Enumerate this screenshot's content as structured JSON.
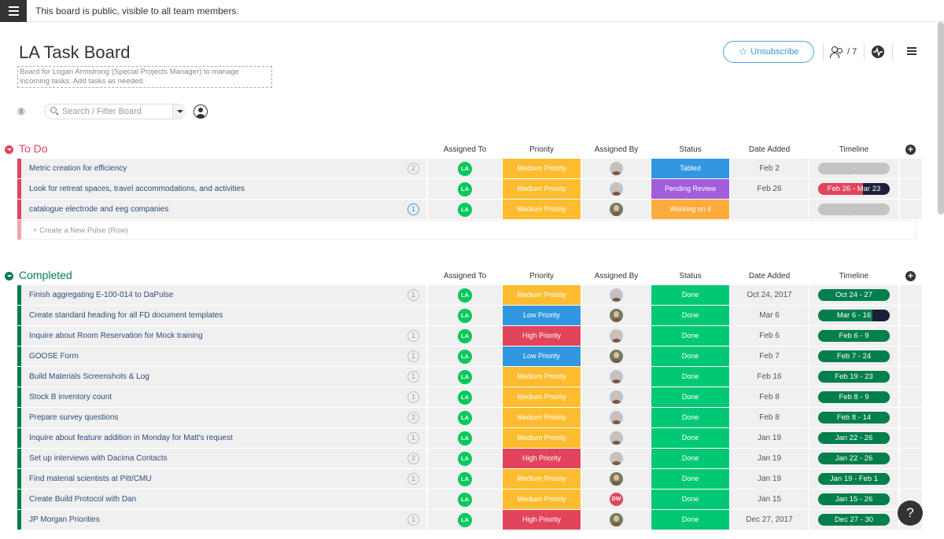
{
  "notice": "This board is public, visible to all team members.",
  "board": {
    "title": "LA Task Board",
    "description": "Board for Logan Armstrong (Special Projects Manager) to manage incoming tasks. Add tasks as needed.",
    "unsubscribe_label": "Unsubscribe",
    "members_count": "/ 7",
    "search_placeholder": "Search / Filter Board",
    "info_label": "i"
  },
  "columns": [
    "Assigned To",
    "Priority",
    "Assigned By",
    "Status",
    "Date Added",
    "Timeline"
  ],
  "groups": [
    {
      "title": "To Do",
      "color": "#e2445c",
      "create_label": "+ Create a New Pulse (Row)",
      "rows": [
        {
          "name": "Metric creation for efficiency",
          "updates": "2",
          "updates_new": false,
          "assignee": "LA",
          "priority": "Medium Priority",
          "priority_color": "#fdbc2f",
          "assigned_by": "a1",
          "status": "Tabled",
          "status_color": "#3097e0",
          "date": "Feb 2",
          "timeline": "-",
          "timeline_fill": 0,
          "timeline_color": "#c4c4c4"
        },
        {
          "name": "Look for retreat spaces, travel accommodations, and activities",
          "updates": "",
          "updates_new": false,
          "assignee": "LA",
          "priority": "Medium Priority",
          "priority_color": "#fdbc2f",
          "assigned_by": "a1",
          "status": "Pending Review",
          "status_color": "#a25ddc",
          "date": "Feb 26",
          "timeline": "Feb 26 - Mar 23",
          "timeline_fill": 0.63,
          "timeline_color": "#e2445c"
        },
        {
          "name": "catalogue electrode and eeg companies",
          "updates": "1",
          "updates_new": true,
          "assignee": "LA",
          "priority": "Medium Priority",
          "priority_color": "#fdbc2f",
          "assigned_by": "a2",
          "status": "Working on it",
          "status_color": "#fdab3d",
          "date": "",
          "timeline": "-",
          "timeline_fill": 0,
          "timeline_color": "#c4c4c4"
        }
      ]
    },
    {
      "title": "Completed",
      "color": "#037f4c",
      "rows": [
        {
          "name": "Finish aggregating E-100-014 to DaPulse",
          "updates": "1",
          "updates_new": false,
          "assignee": "LA",
          "priority": "Medium Priority",
          "priority_color": "#fdbc2f",
          "assigned_by": "a1",
          "status": "Done",
          "status_color": "#00c875",
          "date": "Oct 24, 2017",
          "timeline": "Oct 24 - 27",
          "timeline_fill": 1,
          "timeline_color": "#037f4c"
        },
        {
          "name": "Create standard heading for all FD document templates",
          "updates": "",
          "updates_new": false,
          "assignee": "LA",
          "priority": "Low Priority",
          "priority_color": "#3097e0",
          "assigned_by": "a2",
          "status": "Done",
          "status_color": "#00c875",
          "date": "Mar 6",
          "timeline": "Mar 6 - 16",
          "timeline_fill": 0.76,
          "timeline_color": "#037f4c"
        },
        {
          "name": "Inquire about Room Reservation for Mock training",
          "updates": "1",
          "updates_new": false,
          "assignee": "LA",
          "priority": "High Priority",
          "priority_color": "#e2445c",
          "assigned_by": "a1",
          "status": "Done",
          "status_color": "#00c875",
          "date": "Feb 6",
          "timeline": "Feb 6 - 9",
          "timeline_fill": 1,
          "timeline_color": "#037f4c"
        },
        {
          "name": "GOOSE Form",
          "updates": "1",
          "updates_new": false,
          "assignee": "LA",
          "priority": "Low Priority",
          "priority_color": "#3097e0",
          "assigned_by": "a2",
          "status": "Done",
          "status_color": "#00c875",
          "date": "Feb 7",
          "timeline": "Feb 7 - 24",
          "timeline_fill": 1,
          "timeline_color": "#037f4c"
        },
        {
          "name": "Build Materials Screenshots & Log",
          "updates": "1",
          "updates_new": false,
          "assignee": "LA",
          "priority": "Medium Priority",
          "priority_color": "#fdbc2f",
          "assigned_by": "a1",
          "status": "Done",
          "status_color": "#00c875",
          "date": "Feb 16",
          "timeline": "Feb 19 - 23",
          "timeline_fill": 1,
          "timeline_color": "#037f4c"
        },
        {
          "name": "Stock B inventory count",
          "updates": "1",
          "updates_new": false,
          "assignee": "LA",
          "priority": "Medium Priority",
          "priority_color": "#fdbc2f",
          "assigned_by": "a1",
          "status": "Done",
          "status_color": "#00c875",
          "date": "Feb 8",
          "timeline": "Feb 8 - 9",
          "timeline_fill": 1,
          "timeline_color": "#037f4c"
        },
        {
          "name": "Prepare survey questions",
          "updates": "2",
          "updates_new": false,
          "assignee": "LA",
          "priority": "Medium Priority",
          "priority_color": "#fdbc2f",
          "assigned_by": "a1",
          "status": "Done",
          "status_color": "#00c875",
          "date": "Feb 8",
          "timeline": "Feb 8 - 14",
          "timeline_fill": 1,
          "timeline_color": "#037f4c"
        },
        {
          "name": "Inquire about feature addition in Monday for Matt's request",
          "updates": "1",
          "updates_new": false,
          "assignee": "LA",
          "priority": "Medium Priority",
          "priority_color": "#fdbc2f",
          "assigned_by": "a1",
          "status": "Done",
          "status_color": "#00c875",
          "date": "Jan 19",
          "timeline": "Jan 22 - 26",
          "timeline_fill": 1,
          "timeline_color": "#037f4c"
        },
        {
          "name": "Set up interviews with Dacima Contacts",
          "updates": "2",
          "updates_new": false,
          "assignee": "LA",
          "priority": "High Priority",
          "priority_color": "#e2445c",
          "assigned_by": "a1",
          "status": "Done",
          "status_color": "#00c875",
          "date": "Jan 19",
          "timeline": "Jan 22 - 26",
          "timeline_fill": 1,
          "timeline_color": "#037f4c"
        },
        {
          "name": "Find material scientists at Pitt/CMU",
          "updates": "1",
          "updates_new": false,
          "assignee": "LA",
          "priority": "Medium Priority",
          "priority_color": "#fdbc2f",
          "assigned_by": "a2",
          "status": "Done",
          "status_color": "#00c875",
          "date": "Jan 19",
          "timeline": "Jan 19 - Feb 1",
          "timeline_fill": 1,
          "timeline_color": "#037f4c"
        },
        {
          "name": "Create Build Protocol with Dan",
          "updates": "",
          "updates_new": false,
          "assignee": "LA",
          "priority": "Medium Priority",
          "priority_color": "#fdbc2f",
          "assigned_by": "DW",
          "status": "Done",
          "status_color": "#00c875",
          "date": "Jan 15",
          "timeline": "Jan 15 - 26",
          "timeline_fill": 1,
          "timeline_color": "#037f4c"
        },
        {
          "name": "JP Morgan Priorities",
          "updates": "1",
          "updates_new": false,
          "assignee": "LA",
          "priority": "High Priority",
          "priority_color": "#e2445c",
          "assigned_by": "a2",
          "status": "Done",
          "status_color": "#00c875",
          "date": "Dec 27, 2017",
          "timeline": "Dec 27 - 30",
          "timeline_fill": 1,
          "timeline_color": "#037f4c"
        }
      ]
    }
  ],
  "help_label": "?"
}
